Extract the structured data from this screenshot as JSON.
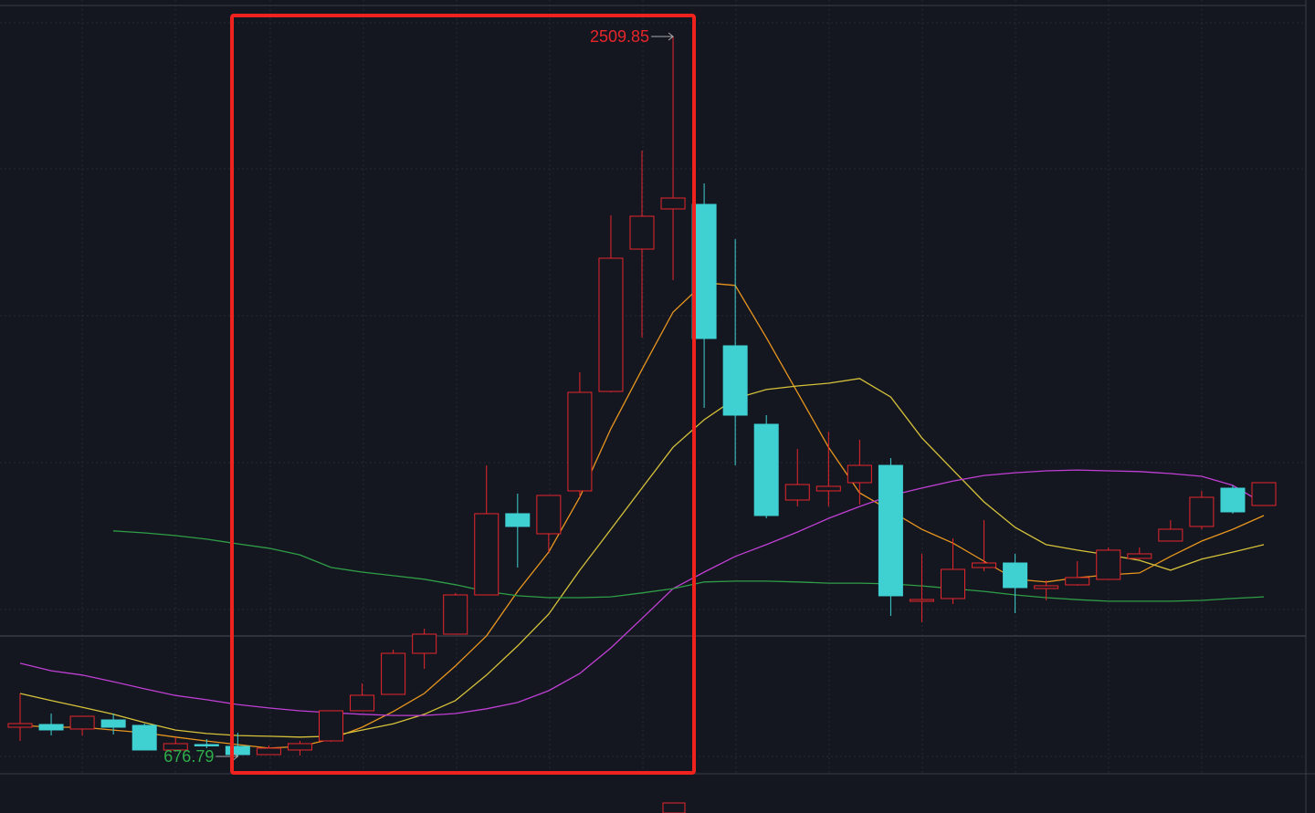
{
  "chart_data": {
    "type": "candlestick",
    "ylim": [
      632.6,
      2602.8
    ],
    "grid": true,
    "up_color": "#e8262c",
    "down_color": "#3fd0d2",
    "candles": {
      "open": [
        751.1,
        758.1,
        746.5,
        769.7,
        755.8,
        693.1,
        707.0,
        702.4,
        681.4,
        693.1,
        716.3,
        793.0,
        834.8,
        939.3,
        988.1,
        1088.0,
        1294.8,
        1243.7,
        1352.9,
        1606.1,
        1968.5,
        2070.8,
        2082.4,
        1722.3,
        1522.5,
        1329.6,
        1352.9,
        1373.8,
        1417.9,
        1071.8,
        1078.7,
        1157.7,
        1169.3,
        1104.3,
        1113.6,
        1127.5,
        1181.0,
        1225.1,
        1262.3,
        1359.8,
        1315.7
      ],
      "high": [
        837.1,
        786.0,
        779.0,
        786.0,
        760.4,
        725.6,
        720.9,
        737.2,
        704.7,
        716.3,
        793.0,
        862.7,
        948.6,
        1002.1,
        1092.7,
        1417.9,
        1345.9,
        1341.3,
        1654.9,
        2054.5,
        2219.5,
        2509.85,
        2135.8,
        1994.1,
        1545.7,
        1459.7,
        1503.9,
        1483.0,
        1436.5,
        1192.6,
        1232.1,
        1278.5,
        1192.6,
        1125.2,
        1174.0,
        1208.8,
        1208.8,
        1278.5,
        1352.9,
        1366.8,
        1373.8
      ],
      "low": [
        716.3,
        730.2,
        730.2,
        732.6,
        693.1,
        688.4,
        697.7,
        676.79,
        681.4,
        679.1,
        714.0,
        793.0,
        834.8,
        899.8,
        988.1,
        1088.0,
        1157.7,
        1197.2,
        1336.6,
        1603.8,
        1743.2,
        1889.6,
        1564.3,
        1417.9,
        1283.2,
        1313.4,
        1313.4,
        1318.0,
        1034.6,
        1018.3,
        1064.8,
        1148.4,
        1041.6,
        1074.1,
        1111.3,
        1127.5,
        1178.6,
        1225.1,
        1255.3,
        1294.8,
        1315.7
      ],
      "close": [
        760.4,
        744.2,
        779.0,
        751.1,
        693.1,
        709.3,
        703.5,
        681.4,
        697.7,
        709.3,
        793.0,
        832.5,
        939.3,
        988.1,
        1088.0,
        1294.8,
        1262.3,
        1341.3,
        1603.8,
        1945.3,
        2052.2,
        2098.6,
        1740.9,
        1545.7,
        1290.1,
        1369.1,
        1364.5,
        1417.9,
        1085.7,
        1076.4,
        1153.1,
        1169.3,
        1106.6,
        1111.3,
        1132.2,
        1201.9,
        1192.6,
        1255.3,
        1336.6,
        1299.4,
        1373.8
      ]
    },
    "series": [
      {
        "color": "#e8951e",
        "values": [
          756,
          751,
          751,
          744,
          737,
          726,
          716,
          707,
          698,
          702,
          721,
          751,
          791,
          837,
          907,
          984,
          1097,
          1197,
          1337,
          1511,
          1662,
          1808,
          1883,
          1876,
          1743,
          1604,
          1464,
          1348,
          1302,
          1255,
          1220,
          1174,
          1128,
          1121,
          1132,
          1139,
          1144,
          1186,
          1225,
          1255,
          1290
        ]
      },
      {
        "color": "#d6c23a",
        "values": [
          837,
          819,
          802,
          784,
          763,
          744,
          735,
          730,
          728,
          726,
          728,
          744,
          760,
          784,
          819,
          884,
          958,
          1039,
          1151,
          1255,
          1360,
          1464,
          1534,
          1588,
          1611,
          1620,
          1627,
          1639,
          1592,
          1488,
          1406,
          1325,
          1260,
          1216,
          1202,
          1190,
          1176,
          1151,
          1179,
          1197,
          1216
        ]
      },
      {
        "color": "#c03fd4",
        "values": [
          914,
          895,
          884,
          867,
          849,
          832,
          821,
          809,
          800,
          793,
          788,
          784,
          781,
          781,
          786,
          798,
          814,
          844,
          888,
          953,
          1028,
          1104,
          1146,
          1186,
          1216,
          1248,
          1283,
          1313,
          1341,
          1360,
          1378,
          1392,
          1399,
          1404,
          1406,
          1404,
          1402,
          1397,
          1390,
          1367,
          1320
        ]
      },
      {
        "color": "#2f9e47",
        "values": [
          null,
          null,
          null,
          1251,
          1246,
          1239,
          1230,
          1218,
          1207,
          1190,
          1158,
          1146,
          1137,
          1128,
          1114,
          1097,
          1086,
          1081,
          1081,
          1083,
          1093,
          1104,
          1121,
          1123,
          1123,
          1121,
          1118,
          1118,
          1116,
          1111,
          1104,
          1097,
          1088,
          1081,
          1076,
          1072,
          1072,
          1072,
          1074,
          1079,
          1083
        ]
      }
    ],
    "annotations": [
      {
        "text": "2509.85",
        "color": "#e8262c"
      },
      {
        "text": "676.79",
        "color": "#2fae4a"
      }
    ]
  }
}
